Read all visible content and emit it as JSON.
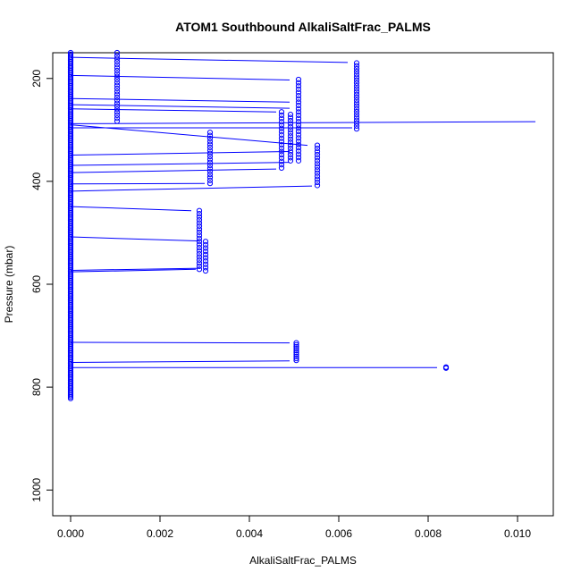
{
  "chart_data": {
    "type": "scatter",
    "title": "ATOM1 Southbound AlkaliSaltFrac_PALMS",
    "xlabel": "AlkaliSaltFrac_PALMS",
    "ylabel": "Pressure (mbar)",
    "xlim": [
      -0.0004,
      0.0108
    ],
    "ylim": [
      1050,
      150
    ],
    "y_reversed": true,
    "xticks": [
      0.0,
      0.002,
      0.004,
      0.006,
      0.008,
      0.01
    ],
    "xtick_labels": [
      "0.000",
      "0.002",
      "0.004",
      "0.006",
      "0.008",
      "0.010"
    ],
    "yticks": [
      200,
      400,
      600,
      800,
      1000
    ],
    "ytick_labels": [
      "200",
      "400",
      "600",
      "800",
      "1000"
    ],
    "grid": false,
    "legend": "none",
    "colors": {
      "points": "#0000ff",
      "lines": "#0000ff"
    },
    "clusters": [
      {
        "x": 0.0,
        "p_start": 150,
        "p_end": 822,
        "n": 230
      },
      {
        "x": 0.00104,
        "p_start": 150,
        "p_end": 283,
        "n": 24
      },
      {
        "x": 0.0064,
        "p_start": 170,
        "p_end": 298,
        "n": 24
      },
      {
        "x": 0.0051,
        "p_start": 202,
        "p_end": 360,
        "n": 26
      },
      {
        "x": 0.00472,
        "p_start": 265,
        "p_end": 374,
        "n": 18
      },
      {
        "x": 0.00492,
        "p_start": 270,
        "p_end": 360,
        "n": 16
      },
      {
        "x": 0.00312,
        "p_start": 305,
        "p_end": 404,
        "n": 18
      },
      {
        "x": 0.00552,
        "p_start": 330,
        "p_end": 408,
        "n": 14
      },
      {
        "x": 0.00288,
        "p_start": 457,
        "p_end": 571,
        "n": 20
      },
      {
        "x": 0.00302,
        "p_start": 517,
        "p_end": 574,
        "n": 10
      },
      {
        "x": 0.00505,
        "p_start": 714,
        "p_end": 748,
        "n": 10
      },
      {
        "x": 0.0084,
        "p_start": 761,
        "p_end": 763,
        "n": 3
      }
    ],
    "transects": [
      {
        "x1": 0.0,
        "p1": 159,
        "x2": 0.0062,
        "p2": 169
      },
      {
        "x1": 0.0,
        "p1": 194,
        "x2": 0.0049,
        "p2": 203
      },
      {
        "x1": 0.0,
        "p1": 239,
        "x2": 0.0049,
        "p2": 246
      },
      {
        "x1": 0.0,
        "p1": 251,
        "x2": 0.0049,
        "p2": 258
      },
      {
        "x1": 0.0,
        "p1": 259,
        "x2": 0.0046,
        "p2": 265
      },
      {
        "x1": 0.0,
        "p1": 288,
        "x2": 0.0104,
        "p2": 284
      },
      {
        "x1": 0.0,
        "p1": 290,
        "x2": 0.0053,
        "p2": 330
      },
      {
        "x1": 0.0,
        "p1": 296,
        "x2": 0.0063,
        "p2": 296
      },
      {
        "x1": 0.0,
        "p1": 349,
        "x2": 0.0049,
        "p2": 342
      },
      {
        "x1": 0.0,
        "p1": 369,
        "x2": 0.0049,
        "p2": 363
      },
      {
        "x1": 0.0,
        "p1": 383,
        "x2": 0.0046,
        "p2": 376
      },
      {
        "x1": 0.0,
        "p1": 405,
        "x2": 0.003,
        "p2": 404
      },
      {
        "x1": 0.0,
        "p1": 419,
        "x2": 0.0054,
        "p2": 409
      },
      {
        "x1": 0.0,
        "p1": 449,
        "x2": 0.0027,
        "p2": 457
      },
      {
        "x1": 0.0,
        "p1": 508,
        "x2": 0.0029,
        "p2": 516
      },
      {
        "x1": 0.0,
        "p1": 573,
        "x2": 0.0029,
        "p2": 569
      },
      {
        "x1": 0.0,
        "p1": 576,
        "x2": 0.0028,
        "p2": 571
      },
      {
        "x1": 0.0,
        "p1": 713,
        "x2": 0.0049,
        "p2": 714
      },
      {
        "x1": 0.0,
        "p1": 752,
        "x2": 0.0049,
        "p2": 749
      },
      {
        "x1": 0.0,
        "p1": 762,
        "x2": 0.0082,
        "p2": 762
      }
    ]
  }
}
